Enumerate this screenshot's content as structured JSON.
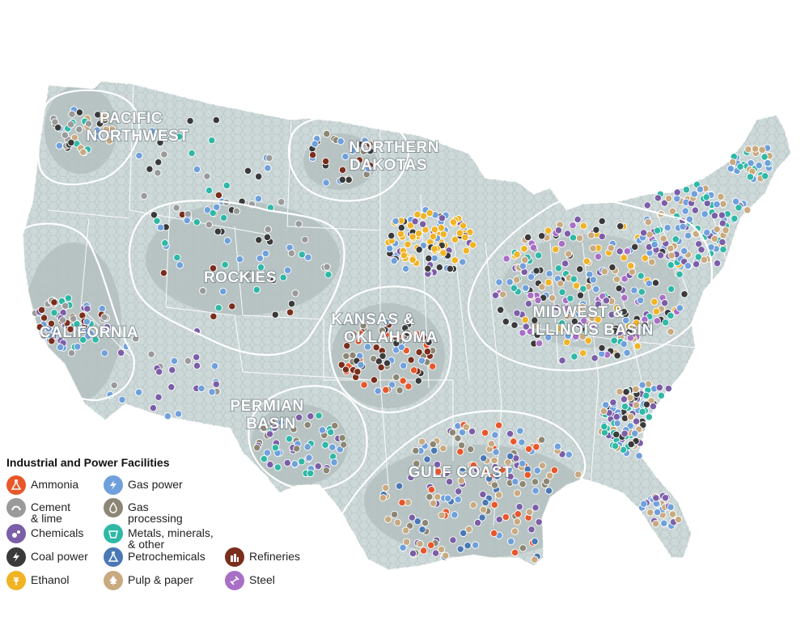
{
  "regions": [
    {
      "id": "pacific-northwest",
      "lines": [
        "PACIFIC",
        "NORTHWEST"
      ]
    },
    {
      "id": "northern-dakotas",
      "lines": [
        "NORTHERN",
        "DAKOTAS"
      ]
    },
    {
      "id": "rockies",
      "lines": [
        "ROCKIES"
      ]
    },
    {
      "id": "california",
      "lines": [
        "CALIFORNIA"
      ]
    },
    {
      "id": "kansas-oklahoma",
      "lines": [
        "KANSAS &",
        "OKLAHOMA"
      ]
    },
    {
      "id": "midwest-illinois-basin",
      "lines": [
        "MIDWEST &",
        "ILLINOIS BASIN"
      ]
    },
    {
      "id": "permian-basin",
      "lines": [
        "PERMIAN",
        "BASIN"
      ]
    },
    {
      "id": "gulf-coast",
      "lines": [
        "GULF COAST"
      ]
    }
  ],
  "legend": {
    "title": "Industrial and Power Facilities",
    "items": [
      {
        "key": "ammonia",
        "label": "Ammonia",
        "color": "#e8562a",
        "icon": "flask-icon"
      },
      {
        "key": "cement",
        "label": "Cement\n& lime",
        "color": "#9a9a9a",
        "icon": "cement-icon"
      },
      {
        "key": "chemicals",
        "label": "Chemicals",
        "color": "#7b5ea7",
        "icon": "chemicals-icon"
      },
      {
        "key": "coal",
        "label": "Coal power",
        "color": "#3a3a3a",
        "icon": "lightning-icon"
      },
      {
        "key": "ethanol",
        "label": "Ethanol",
        "color": "#f0b323",
        "icon": "wheat-icon"
      },
      {
        "key": "gas_power",
        "label": "Gas power",
        "color": "#6fa0dc",
        "icon": "lightning-icon"
      },
      {
        "key": "gas_processing",
        "label": "Gas\nprocessing",
        "color": "#8c8674",
        "icon": "droplet-icon"
      },
      {
        "key": "metals",
        "label": "Metals, minerals,\n& other",
        "color": "#2fb8a6",
        "icon": "bucket-icon"
      },
      {
        "key": "petrochemicals",
        "label": "Petrochemicals",
        "color": "#4a78b5",
        "icon": "beaker-icon"
      },
      {
        "key": "pulp",
        "label": "Pulp & paper",
        "color": "#c9a97f",
        "icon": "tree-icon"
      },
      {
        "key": "refineries",
        "label": "Refineries",
        "color": "#7a2e1c",
        "icon": "refinery-icon"
      },
      {
        "key": "steel",
        "label": "Steel",
        "color": "#a86fc6",
        "icon": "beam-icon"
      }
    ]
  },
  "colors": {
    "land": "#cdd8d8",
    "hex_dark": "#9aa8a8",
    "boundary": "#ffffff",
    "region_outline": "#ffffff"
  }
}
